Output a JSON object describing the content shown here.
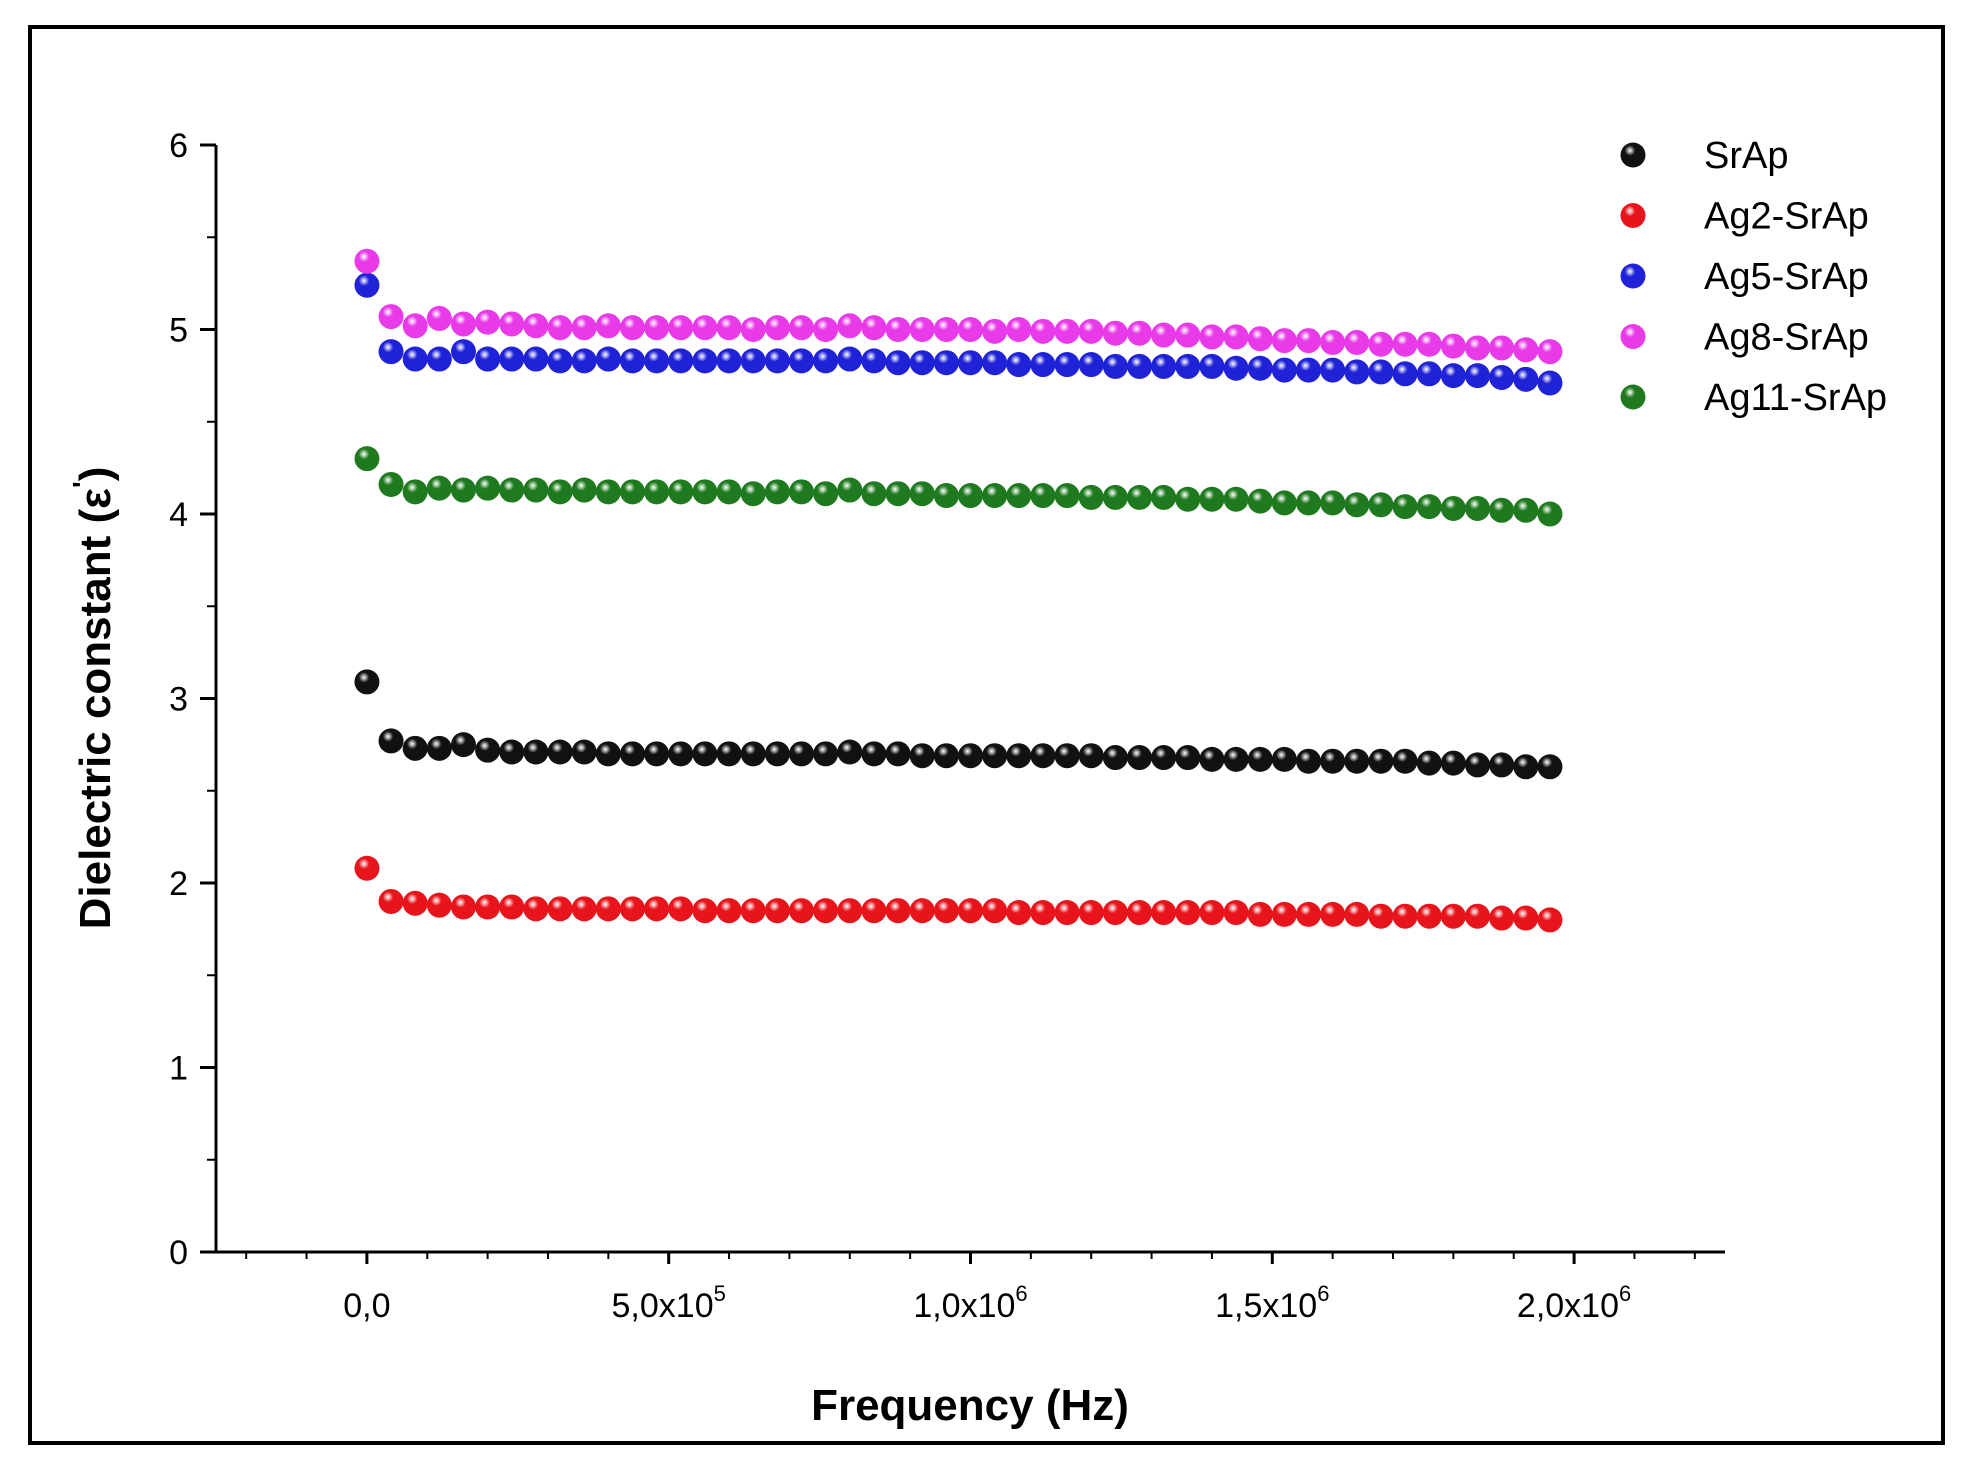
{
  "chart_data": {
    "type": "scatter",
    "title": "",
    "xlabel": "Frequency (Hz)",
    "ylabel": "Dielectric constant (ε')",
    "ylabel_main": "Dielectric constant (ε",
    "ylabel_prime": "'",
    "ylabel_close": ")",
    "xlim": [
      -250000,
      2250000
    ],
    "ylim": [
      0,
      6
    ],
    "x_ticks": [
      {
        "value": 0,
        "mantissa": "0,0",
        "exp": ""
      },
      {
        "value": 500000,
        "mantissa": "5,0x10",
        "exp": "5"
      },
      {
        "value": 1000000,
        "mantissa": "1,0x10",
        "exp": "6"
      },
      {
        "value": 1500000,
        "mantissa": "1,5x10",
        "exp": "6"
      },
      {
        "value": 2000000,
        "mantissa": "2,0x10",
        "exp": "6"
      }
    ],
    "y_ticks": [
      "0",
      "1",
      "2",
      "3",
      "4",
      "5",
      "6"
    ],
    "grid": false,
    "legend_position": "top-right",
    "colors": {
      "SrAp": "#111111",
      "Ag2-SrAp": "#e8141b",
      "Ag5-SrAp": "#1f22d6",
      "Ag8-SrAp": "#e83ae8",
      "Ag11-SrAp": "#1f7a1f"
    },
    "x": [
      100,
      40000,
      80000,
      120000,
      160000,
      200000,
      240000,
      280000,
      320000,
      360000,
      400000,
      440000,
      480000,
      520000,
      560000,
      600000,
      640000,
      680000,
      720000,
      760000,
      800000,
      840000,
      880000,
      920000,
      960000,
      1000000,
      1040000,
      1080000,
      1120000,
      1160000,
      1200000,
      1240000,
      1280000,
      1320000,
      1360000,
      1400000,
      1440000,
      1480000,
      1520000,
      1560000,
      1600000,
      1640000,
      1680000,
      1720000,
      1760000,
      1800000,
      1840000,
      1880000,
      1920000,
      1960000
    ],
    "series": [
      {
        "name": "SrAp",
        "values": [
          3.09,
          2.77,
          2.73,
          2.73,
          2.75,
          2.72,
          2.71,
          2.71,
          2.71,
          2.71,
          2.7,
          2.7,
          2.7,
          2.7,
          2.7,
          2.7,
          2.7,
          2.7,
          2.7,
          2.7,
          2.71,
          2.7,
          2.7,
          2.69,
          2.69,
          2.69,
          2.69,
          2.69,
          2.69,
          2.69,
          2.69,
          2.68,
          2.68,
          2.68,
          2.68,
          2.67,
          2.67,
          2.67,
          2.67,
          2.66,
          2.66,
          2.66,
          2.66,
          2.66,
          2.65,
          2.65,
          2.64,
          2.64,
          2.63,
          2.63
        ]
      },
      {
        "name": "Ag2-SrAp",
        "values": [
          2.08,
          1.9,
          1.89,
          1.88,
          1.87,
          1.87,
          1.87,
          1.86,
          1.86,
          1.86,
          1.86,
          1.86,
          1.86,
          1.86,
          1.85,
          1.85,
          1.85,
          1.85,
          1.85,
          1.85,
          1.85,
          1.85,
          1.85,
          1.85,
          1.85,
          1.85,
          1.85,
          1.84,
          1.84,
          1.84,
          1.84,
          1.84,
          1.84,
          1.84,
          1.84,
          1.84,
          1.84,
          1.83,
          1.83,
          1.83,
          1.83,
          1.83,
          1.82,
          1.82,
          1.82,
          1.82,
          1.82,
          1.81,
          1.81,
          1.8
        ]
      },
      {
        "name": "Ag5-SrAp",
        "values": [
          5.24,
          4.88,
          4.84,
          4.84,
          4.88,
          4.84,
          4.84,
          4.84,
          4.83,
          4.83,
          4.84,
          4.83,
          4.83,
          4.83,
          4.83,
          4.83,
          4.83,
          4.83,
          4.83,
          4.83,
          4.84,
          4.83,
          4.82,
          4.82,
          4.82,
          4.82,
          4.82,
          4.81,
          4.81,
          4.81,
          4.81,
          4.8,
          4.8,
          4.8,
          4.8,
          4.8,
          4.79,
          4.79,
          4.78,
          4.78,
          4.78,
          4.77,
          4.77,
          4.76,
          4.76,
          4.75,
          4.75,
          4.74,
          4.73,
          4.71
        ]
      },
      {
        "name": "Ag8-SrAp",
        "values": [
          5.37,
          5.07,
          5.02,
          5.06,
          5.03,
          5.04,
          5.03,
          5.02,
          5.01,
          5.01,
          5.02,
          5.01,
          5.01,
          5.01,
          5.01,
          5.01,
          5.0,
          5.01,
          5.01,
          5.0,
          5.02,
          5.01,
          5.0,
          5.0,
          5.0,
          5.0,
          4.99,
          5.0,
          4.99,
          4.99,
          4.99,
          4.98,
          4.98,
          4.97,
          4.97,
          4.96,
          4.96,
          4.95,
          4.94,
          4.94,
          4.93,
          4.93,
          4.92,
          4.92,
          4.92,
          4.91,
          4.9,
          4.9,
          4.89,
          4.88
        ]
      },
      {
        "name": "Ag11-SrAp",
        "values": [
          4.3,
          4.16,
          4.12,
          4.14,
          4.13,
          4.14,
          4.13,
          4.13,
          4.12,
          4.13,
          4.12,
          4.12,
          4.12,
          4.12,
          4.12,
          4.12,
          4.11,
          4.12,
          4.12,
          4.11,
          4.13,
          4.11,
          4.11,
          4.11,
          4.1,
          4.1,
          4.1,
          4.1,
          4.1,
          4.1,
          4.09,
          4.09,
          4.09,
          4.09,
          4.08,
          4.08,
          4.08,
          4.07,
          4.06,
          4.06,
          4.06,
          4.05,
          4.05,
          4.04,
          4.04,
          4.03,
          4.03,
          4.02,
          4.02,
          4.0
        ]
      }
    ]
  }
}
